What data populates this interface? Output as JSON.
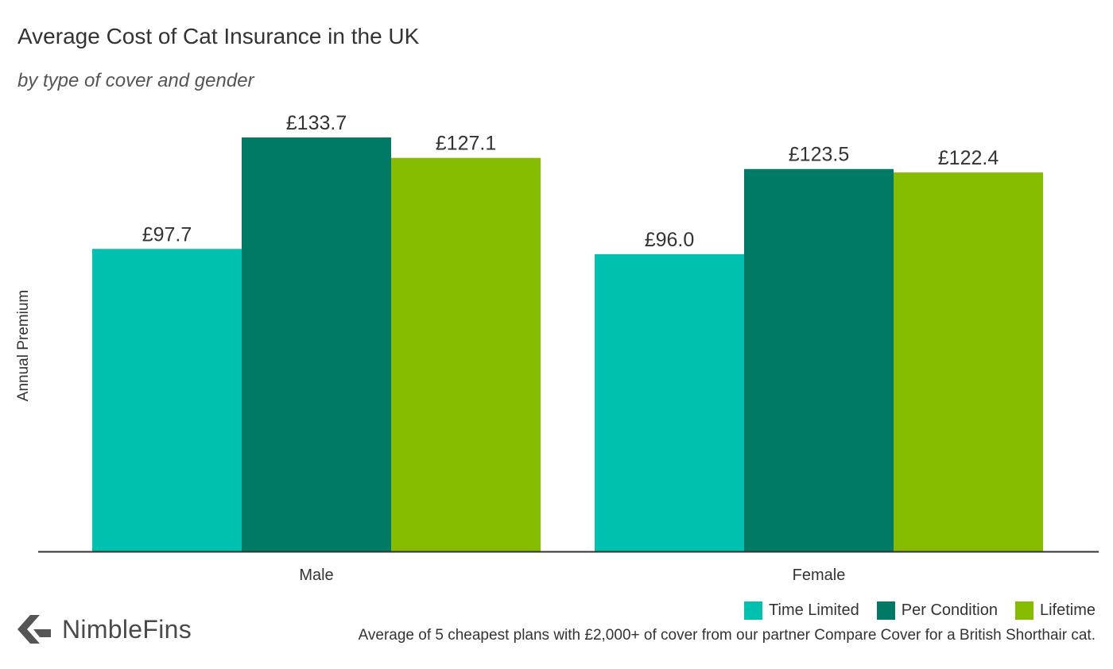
{
  "header": {
    "title": "Average Cost of Cat Insurance in the UK",
    "subtitle": "by type of cover and gender"
  },
  "chart_data": {
    "type": "bar",
    "title": "Average Cost of Cat Insurance in the UK",
    "subtitle": "by type of cover and gender",
    "xlabel": "",
    "ylabel": "Annual Premium",
    "categories": [
      "Male",
      "Female"
    ],
    "series": [
      {
        "name": "Time Limited",
        "values": [
          97.7,
          96.0
        ],
        "labels": [
          "£97.7",
          "£96.0"
        ],
        "color": "#00c1b0"
      },
      {
        "name": "Per Condition",
        "values": [
          133.7,
          123.5
        ],
        "labels": [
          "£133.7",
          "£123.5"
        ],
        "color": "#007a64"
      },
      {
        "name": "Lifetime",
        "values": [
          127.1,
          122.4
        ],
        "labels": [
          "£127.1",
          "£122.4"
        ],
        "color": "#86bc00"
      }
    ],
    "ylim": [
      0,
      133.7
    ],
    "grid": false,
    "legend_position": "bottom-right"
  },
  "footer": {
    "brand": "NimbleFins",
    "note": "Average of 5 cheapest plans with £2,000+ of cover from our partner Compare Cover for a British Shorthair cat."
  },
  "colors": {
    "axis": "#333333",
    "logo": "#555555"
  }
}
